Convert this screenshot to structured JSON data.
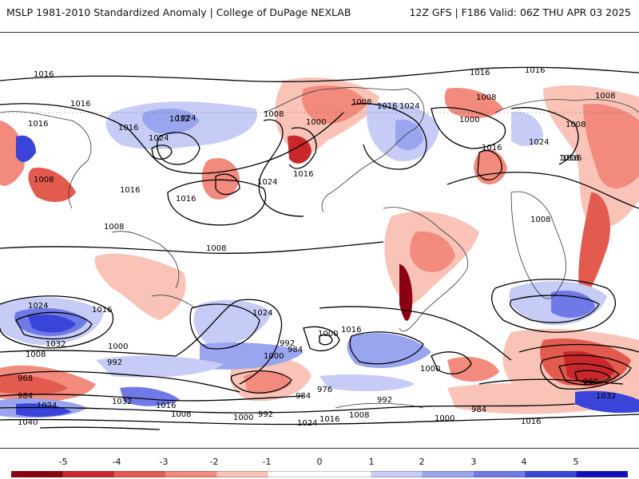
{
  "header": {
    "left_text": "MSLP 1981-2010 Standardized Anomaly | College of DuPage NEXLAB",
    "right_text": "12Z GFS | F186 Valid: 06Z THU APR 03 2025"
  },
  "map": {
    "isobar_labels": [
      "1016",
      "1016",
      "1016",
      "1016",
      "1016",
      "1024",
      "1032",
      "1024",
      "1008",
      "1000",
      "1008",
      "1016",
      "1024",
      "1016",
      "1008",
      "1000",
      "1008",
      "1016",
      "1024",
      "1016",
      "1008",
      "1008",
      "1016",
      "1008",
      "1016",
      "1024",
      "1016",
      "1016",
      "1024",
      "1008",
      "1008",
      "1024",
      "1032",
      "1000",
      "992",
      "1008",
      "1016",
      "1000",
      "992",
      "984",
      "1000",
      "1016",
      "1000",
      "976",
      "992",
      "984",
      "960",
      "968",
      "984",
      "1024",
      "1040",
      "1032",
      "1016",
      "1008",
      "1000",
      "992",
      "1024",
      "1016",
      "1008",
      "1000",
      "984",
      "1016",
      "1032"
    ],
    "colors": {
      "neg5": "#8b0011",
      "neg4": "#c8282c",
      "neg3": "#e35a4f",
      "neg2": "#f28a7d",
      "neg1": "#f9c3b7",
      "zero": "#ffffff",
      "pos1": "#c6ccf6",
      "pos2": "#9aa5f0",
      "pos3": "#6f7ae6",
      "pos4": "#3b44d8",
      "pos5": "#1010c0"
    }
  },
  "colorbar": {
    "ticks": [
      "-5",
      "-4",
      "-3",
      "-2",
      "-1",
      "0",
      "1",
      "2",
      "3",
      "4",
      "5"
    ]
  }
}
